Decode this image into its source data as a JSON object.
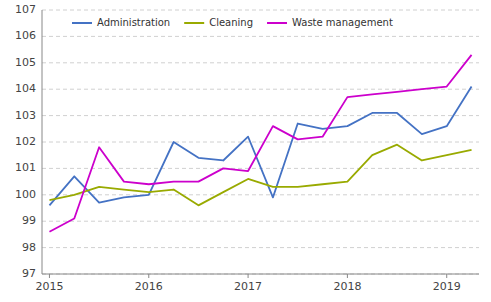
{
  "chart_data": {
    "type": "line",
    "categories": [
      "2015",
      null,
      null,
      null,
      "2016",
      null,
      null,
      null,
      "2017",
      null,
      null,
      null,
      "2018",
      null,
      null,
      null,
      "2019",
      null
    ],
    "series": [
      {
        "name": "Administration",
        "color": "#4472C4",
        "values": [
          99.6,
          100.7,
          99.7,
          99.9,
          100.0,
          102.0,
          101.4,
          101.3,
          102.2,
          99.9,
          102.7,
          102.5,
          102.6,
          103.1,
          103.1,
          102.3,
          102.6,
          104.1
        ]
      },
      {
        "name": "Cleaning",
        "color": "#99AA00",
        "values": [
          99.8,
          100.0,
          100.3,
          100.2,
          100.1,
          100.2,
          99.6,
          100.1,
          100.6,
          100.3,
          100.3,
          100.4,
          100.5,
          101.5,
          101.9,
          101.3,
          101.5,
          101.7
        ]
      },
      {
        "name": "Waste management",
        "color": "#CC00CC",
        "values": [
          98.6,
          99.1,
          101.8,
          100.5,
          100.4,
          100.5,
          100.5,
          101.0,
          100.9,
          102.6,
          102.1,
          102.2,
          103.7,
          103.8,
          103.9,
          104.0,
          104.1,
          105.3
        ]
      }
    ],
    "ylim": [
      97,
      107
    ],
    "yticks": [
      97,
      98,
      99,
      100,
      101,
      102,
      103,
      104,
      105,
      106,
      107
    ],
    "grid": true,
    "legend": "upper left"
  }
}
